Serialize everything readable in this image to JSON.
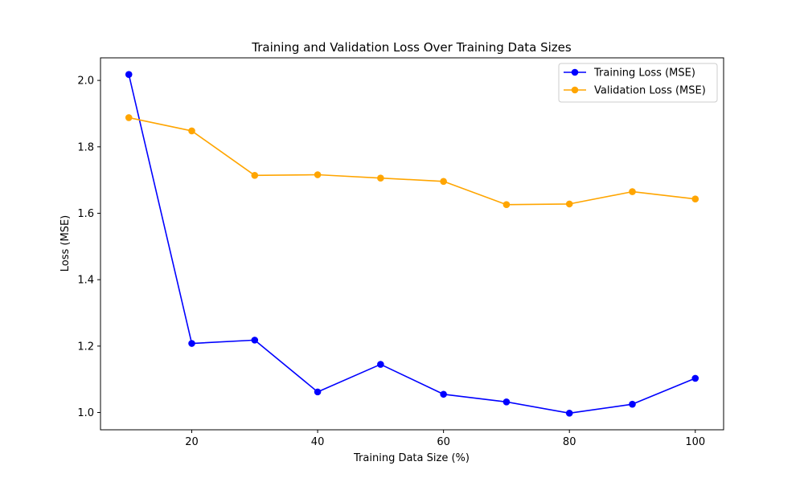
{
  "chart_data": {
    "type": "line",
    "title": "Training and Validation Loss Over Training Data Sizes",
    "xlabel": "Training Data Size (%)",
    "ylabel": "Loss (MSE)",
    "x": [
      10,
      20,
      30,
      40,
      50,
      60,
      70,
      80,
      90,
      100
    ],
    "xlim": [
      5.5,
      104.5
    ],
    "ylim": [
      0.948,
      2.068
    ],
    "xticks": [
      20,
      40,
      60,
      80,
      100
    ],
    "yticks": [
      1.0,
      1.2,
      1.4,
      1.6,
      1.8,
      2.0
    ],
    "grid": false,
    "legend_position": "upper-right",
    "series": [
      {
        "name": "Training Loss (MSE)",
        "color": "#0000ff",
        "marker": "circle",
        "values": [
          2.018,
          1.208,
          1.218,
          1.062,
          1.145,
          1.055,
          1.032,
          0.998,
          1.025,
          1.103
        ]
      },
      {
        "name": "Validation Loss (MSE)",
        "color": "#ffa500",
        "marker": "circle",
        "values": [
          1.888,
          1.848,
          1.714,
          1.716,
          1.706,
          1.696,
          1.626,
          1.628,
          1.665,
          1.643
        ]
      }
    ]
  }
}
